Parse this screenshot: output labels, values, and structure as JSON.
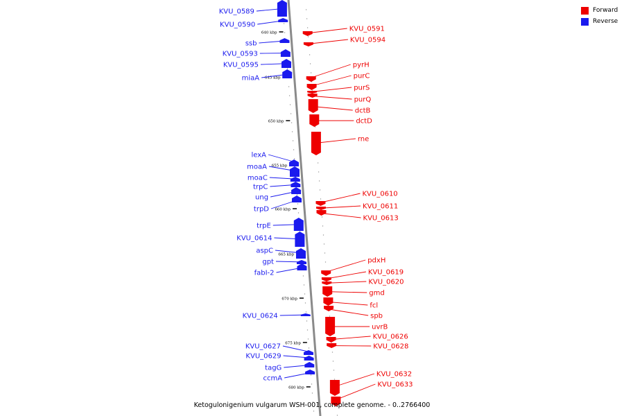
{
  "legend": {
    "forward_label": "Forward",
    "reverse_label": "Reverse",
    "forward_color": "#ee0000",
    "reverse_color": "#1a1aee"
  },
  "caption": "Ketogulonigenium vulgarum WSH-001, complete genome. - 0..2766400",
  "kbp_ticks": [
    "640 kbp",
    "645 kbp",
    "650 kbp",
    "655 kbp",
    "660 kbp",
    "665 kbp",
    "670 kbp",
    "675 kbp",
    "680 kbp"
  ],
  "reverse_genes": [
    "KVU_0589",
    "KVU_0590",
    "ssb",
    "KVU_0593",
    "KVU_0595",
    "miaA",
    "lexA",
    "moaA",
    "moaC",
    "trpC",
    "ung",
    "trpD",
    "trpE",
    "KVU_0614",
    "aspC",
    "gpt",
    "fabI-2",
    "KVU_0624",
    "KVU_0627",
    "KVU_0629",
    "tagG",
    "ccmA"
  ],
  "forward_genes": [
    "KVU_0591",
    "KVU_0594",
    "pyrH",
    "purC",
    "purS",
    "purQ",
    "dctB",
    "dctD",
    "rne",
    "KVU_0610",
    "KVU_0611",
    "KVU_0613",
    "pdxH",
    "KVU_0619",
    "KVU_0620",
    "gmd",
    "fcl",
    "spb",
    "uvrB",
    "KVU_0626",
    "KVU_0628",
    "KVU_0632",
    "KVU_0633"
  ]
}
